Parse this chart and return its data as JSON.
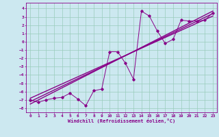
{
  "xlabel": "Windchill (Refroidissement éolien,°C)",
  "bg_color": "#cce8f0",
  "line_color": "#880088",
  "grid_color": "#99ccbb",
  "xlim": [
    -0.5,
    23.5
  ],
  "ylim": [
    -8.5,
    4.7
  ],
  "xticks": [
    0,
    1,
    2,
    3,
    4,
    5,
    6,
    7,
    8,
    9,
    10,
    11,
    12,
    13,
    14,
    15,
    16,
    17,
    18,
    19,
    20,
    21,
    22,
    23
  ],
  "yticks": [
    4,
    3,
    2,
    1,
    0,
    -1,
    -2,
    -3,
    -4,
    -5,
    -6,
    -7,
    -8
  ],
  "series1_x": [
    0,
    1,
    2,
    3,
    4,
    5,
    6,
    7,
    8,
    9,
    10,
    11,
    12,
    13,
    14,
    15,
    16,
    17,
    18,
    19,
    20,
    21,
    22,
    23
  ],
  "series1_y": [
    -7.0,
    -7.3,
    -7.0,
    -6.8,
    -6.7,
    -6.2,
    -6.9,
    -7.7,
    -5.9,
    -5.7,
    -1.2,
    -1.2,
    -2.6,
    -4.5,
    3.7,
    3.1,
    1.3,
    -0.2,
    0.3,
    2.6,
    2.5,
    2.5,
    2.6,
    3.5
  ],
  "series2_x": [
    0,
    23
  ],
  "series2_y": [
    -7.2,
    3.4
  ],
  "series3_x": [
    0,
    23
  ],
  "series3_y": [
    -6.8,
    3.1
  ],
  "series4_x": [
    0,
    23
  ],
  "series4_y": [
    -7.5,
    3.7
  ]
}
